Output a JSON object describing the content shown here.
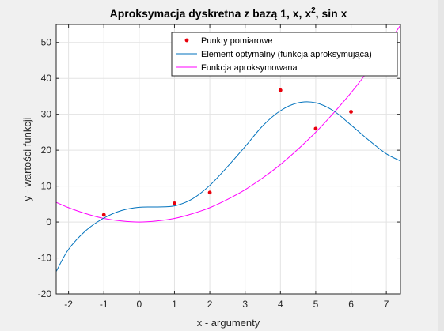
{
  "colors": {
    "figure_bg": "#f0f0f0",
    "axes_bg": "#ffffff",
    "grid": "#e3e3e3",
    "axis": "#262626",
    "points": "#e8000b",
    "approx": "#0072bd",
    "target": "#ff00ff"
  },
  "chart_data": {
    "type": "line",
    "title_parts": [
      "Aproksymacja dyskretna z bazą 1, x, x",
      "2",
      ", sin x"
    ],
    "xlabel": "x - argumenty",
    "ylabel": "y - wartości funkcji",
    "xlim": [
      -2.35,
      7.4
    ],
    "ylim": [
      -20,
      55
    ],
    "xticks": [
      -2,
      -1,
      0,
      1,
      2,
      3,
      4,
      5,
      6,
      7
    ],
    "yticks": [
      -20,
      -10,
      0,
      10,
      20,
      30,
      40,
      50
    ],
    "grid": true,
    "legend_position": "top-right",
    "series": [
      {
        "name": "Punkty pomiarowe",
        "style": "markers",
        "x": [
          -1,
          1,
          2,
          4,
          5,
          6
        ],
        "y": [
          2.0,
          5.2,
          8.2,
          36.7,
          26.0,
          30.7
        ]
      },
      {
        "name": "Element optymalny (funkcja aproksymująca)",
        "style": "line",
        "x": [
          -2.35,
          -2,
          -1.5,
          -1,
          -0.5,
          0,
          0.5,
          1,
          1.5,
          2,
          2.5,
          3,
          3.5,
          4,
          4.5,
          5,
          5.5,
          6,
          6.5,
          7,
          7.4
        ],
        "y": [
          -13.8,
          -7.6,
          -2.3,
          1.1,
          3.2,
          4.1,
          4.2,
          4.5,
          6.4,
          10.2,
          15.4,
          21.0,
          26.8,
          31.0,
          33.2,
          33.2,
          31.0,
          27.0,
          22.8,
          19.0,
          17.0
        ]
      },
      {
        "name": "Funkcja aproksymowana",
        "style": "line",
        "x": [
          -2.35,
          -2,
          -1.5,
          -1,
          -0.5,
          0,
          0.5,
          1,
          1.5,
          2,
          2.5,
          3,
          3.5,
          4,
          4.5,
          5,
          5.5,
          6,
          6.5,
          7,
          7.4
        ],
        "y": [
          5.5,
          4.0,
          2.3,
          1.0,
          0.3,
          0.0,
          0.3,
          1.0,
          2.3,
          4.0,
          6.3,
          9.0,
          12.3,
          16.0,
          20.3,
          25.0,
          30.3,
          36.0,
          42.3,
          49.0,
          54.8
        ]
      }
    ]
  }
}
